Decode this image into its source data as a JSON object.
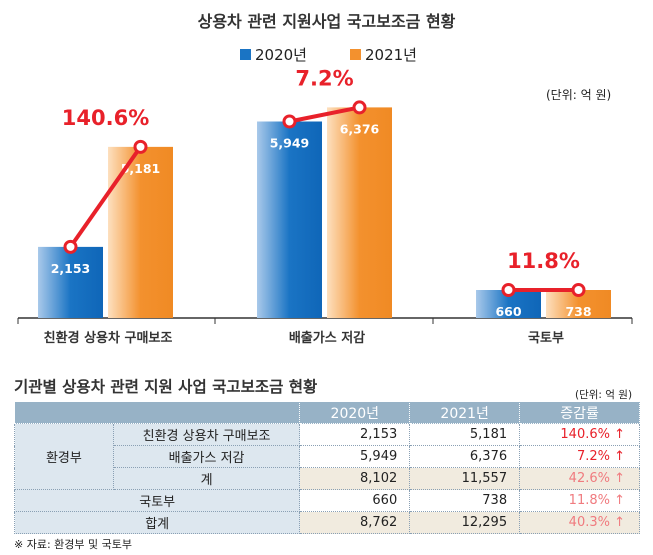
{
  "chart_data": {
    "type": "bar",
    "title": "상용차 관련 지원사업 국고보조금 현황",
    "unit": "(단위: 억 원)",
    "categories": [
      "친환경 상용차 구매보조",
      "배출가스 저감",
      "국토부"
    ],
    "series": [
      {
        "name": "2020년",
        "color": "#1a74c4",
        "values": [
          2153,
          5949,
          660
        ],
        "labels": [
          "2,153",
          "5,949",
          "660"
        ]
      },
      {
        "name": "2021년",
        "color": "#f3912e",
        "values": [
          5181,
          6376,
          738
        ],
        "labels": [
          "5,181",
          "6,376",
          "738"
        ]
      }
    ],
    "growth_labels": [
      "140.6%",
      "7.2%",
      "11.8%"
    ],
    "line_color": "#e8212a",
    "ylim": [
      0,
      6600
    ]
  },
  "table": {
    "title": "기관별 상용차 관련 지원 사업 국고보조금 현황",
    "unit": "(단위: 억 원)",
    "headers": [
      "2020년",
      "2021년",
      "증감률"
    ],
    "group": "환경부",
    "rows": [
      {
        "label": "친환경 상용차 구매보조",
        "v2020": "2,153",
        "v2021": "5,181",
        "rate": "140.6% ↑"
      },
      {
        "label": "배출가스 저감",
        "v2020": "5,949",
        "v2021": "6,376",
        "rate": "7.2% ↑"
      },
      {
        "label": "계",
        "v2020": "8,102",
        "v2021": "11,557",
        "rate": "42.6% ↑"
      },
      {
        "label": "국토부",
        "v2020": "660",
        "v2021": "738",
        "rate": "11.8% ↑"
      },
      {
        "label": "합계",
        "v2020": "8,762",
        "v2021": "12,295",
        "rate": "40.3% ↑"
      }
    ]
  },
  "source": "※ 자료: 환경부 및 국토부"
}
